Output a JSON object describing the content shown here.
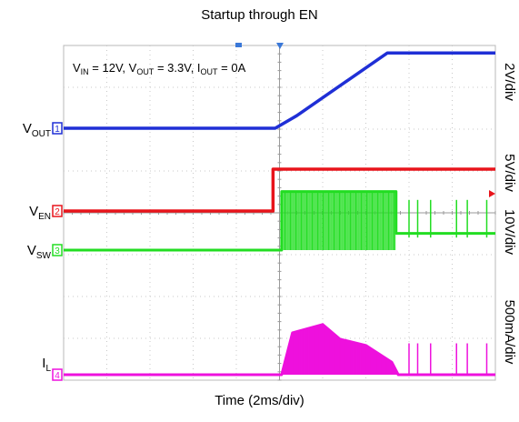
{
  "chart_data": {
    "type": "line",
    "title": "Startup through EN",
    "xlabel": "Time (2ms/div)",
    "annotation": {
      "parts": [
        {
          "t": "V",
          "s": "IN",
          "v": " = 12V, "
        },
        {
          "t": "V",
          "s": "OUT",
          "v": " = 3.3V, "
        },
        {
          "t": "I",
          "s": "OUT",
          "v": " = 0A"
        }
      ]
    },
    "x_divisions": 10,
    "x_per_div_ms": 2,
    "y_divisions": 8,
    "grid": true,
    "channels": [
      {
        "id": "1",
        "label": "V",
        "sub": "OUT",
        "color": "#1f2fd6",
        "scale": "2V/div",
        "trace": [
          [
            0,
            0
          ],
          [
            4.9,
            0
          ],
          [
            5.4,
            0.3
          ],
          [
            7.5,
            1.8
          ],
          [
            7.8,
            1.8
          ],
          [
            10,
            1.8
          ]
        ]
      },
      {
        "id": "2",
        "label": "V",
        "sub": "EN",
        "color": "#e8141b",
        "scale": "5V/div",
        "trace": [
          [
            0,
            0
          ],
          [
            4.85,
            0
          ],
          [
            4.85,
            1.0
          ],
          [
            10,
            1.0
          ]
        ]
      },
      {
        "id": "3",
        "label": "V",
        "sub": "SW",
        "color": "#22dd22",
        "scale": "10V/div",
        "trace": [
          [
            0,
            0
          ],
          [
            5.05,
            0
          ],
          [
            5.05,
            1.4
          ],
          [
            7.7,
            1.4
          ],
          [
            7.7,
            0.4
          ],
          [
            10,
            0.4
          ]
        ]
      },
      {
        "id": "4",
        "label": "I",
        "sub": "L",
        "color": "#ee11dd",
        "scale": "500mA/div",
        "trace": [
          [
            0,
            0
          ],
          [
            5.05,
            0
          ],
          [
            5.3,
            1.0
          ],
          [
            6.0,
            1.2
          ],
          [
            6.4,
            0.85
          ],
          [
            7.0,
            0.7
          ],
          [
            7.6,
            0.3
          ],
          [
            7.75,
            0
          ],
          [
            10,
            0
          ]
        ]
      }
    ]
  }
}
